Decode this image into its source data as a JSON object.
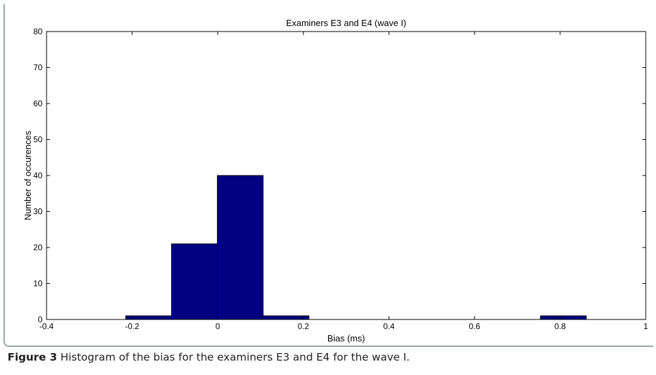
{
  "caption": {
    "label": "Figure 3",
    "text": " Histogram of the bias for the examiners E3 and E4 for the wave I."
  },
  "chart_data": {
    "type": "bar",
    "title": "Examiners E3 and E4 (wave I)",
    "xlabel": "Bias (ms)",
    "ylabel": "Number of occurences",
    "xlim": [
      -0.4,
      1
    ],
    "ylim": [
      0,
      80
    ],
    "xticks": [
      "-0.4",
      "-0.2",
      "0",
      "0.2",
      "0.4",
      "0.6",
      "0.8",
      "1"
    ],
    "yticks": [
      "0",
      "10",
      "20",
      "30",
      "40",
      "50",
      "60",
      "70",
      "80"
    ],
    "bins": [
      {
        "start": -0.215,
        "end": -0.108,
        "count": 1
      },
      {
        "start": -0.108,
        "end": -0.001,
        "count": 21
      },
      {
        "start": -0.001,
        "end": 0.106,
        "count": 40
      },
      {
        "start": 0.106,
        "end": 0.213,
        "count": 1
      },
      {
        "start": 0.754,
        "end": 0.861,
        "count": 1
      }
    ],
    "bar_color": "#000080",
    "grid": false
  }
}
